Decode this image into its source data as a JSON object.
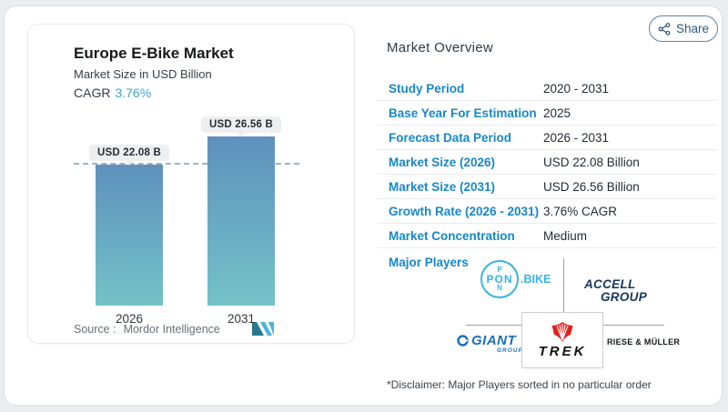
{
  "chart": {
    "title": "Europe E-Bike Market",
    "subtitle": "Market Size in USD Billion",
    "cagr_label": "CAGR",
    "cagr_value": "3.76%",
    "bar_labels": [
      "USD 22.08 B",
      "USD 26.56 B"
    ],
    "source_label": "Source :",
    "source_value": "Mordor Intelligence"
  },
  "chart_data": {
    "type": "bar",
    "title": "Europe E-Bike Market",
    "ylabel": "Market Size in USD Billion",
    "categories": [
      "2026",
      "2031"
    ],
    "values": [
      22.08,
      26.56
    ],
    "data_labels": [
      "USD 22.08 B",
      "USD 26.56 B"
    ],
    "unit": "USD Billion",
    "ylim": [
      0,
      30
    ],
    "reference_line": 22.08,
    "grid": false,
    "legend": false,
    "bar_gradient": [
      "#5e91bc",
      "#74c2c8"
    ]
  },
  "share": {
    "label": "Share",
    "icon": "share-nodes-icon"
  },
  "overview": {
    "heading": "Market Overview",
    "rows": [
      {
        "label": "Study Period",
        "value": "2020 - 2031"
      },
      {
        "label": "Base Year For Estimation",
        "value": "2025"
      },
      {
        "label": "Forecast Data Period",
        "value": "2026 - 2031"
      },
      {
        "label": "Market Size (2026)",
        "value": "USD 22.08 Billion"
      },
      {
        "label": "Market Size (2031)",
        "value": "USD 26.56 Billion"
      },
      {
        "label": "Growth Rate (2026 - 2031)",
        "value": "3.76% CAGR"
      },
      {
        "label": "Market Concentration",
        "value": "Medium"
      }
    ],
    "major_players_label": "Major Players",
    "players": [
      "PON.BIKE",
      "ACCELL GROUP",
      "GIANT GROUP",
      "TREK",
      "RIESE & MÜLLER"
    ],
    "logos": {
      "pon_top": "P",
      "pon_mid": "PON",
      "pon_bottom": "N",
      "pon_suffix": ".BIKE",
      "accell_line1": "ACCELL",
      "accell_line2": "GROUP",
      "giant_name": "GIANT",
      "giant_sub": "GROUP",
      "trek_name": "TREK",
      "riese_name": "RIESE & MÜLLER"
    },
    "disclaimer": "*Disclaimer: Major Players sorted in no particular order"
  },
  "colors": {
    "page_bg": "#e9edf0",
    "label_blue": "#1787c8",
    "cagr_blue": "#41a5cd",
    "bar_top": "#5e91bc",
    "bar_bottom": "#74c2c8",
    "pon_blue": "#36b3e4",
    "accell_navy": "#16355f",
    "giant_blue": "#1b6ec2",
    "trek_red": "#e0231d",
    "share_border": "#5e83a6"
  }
}
